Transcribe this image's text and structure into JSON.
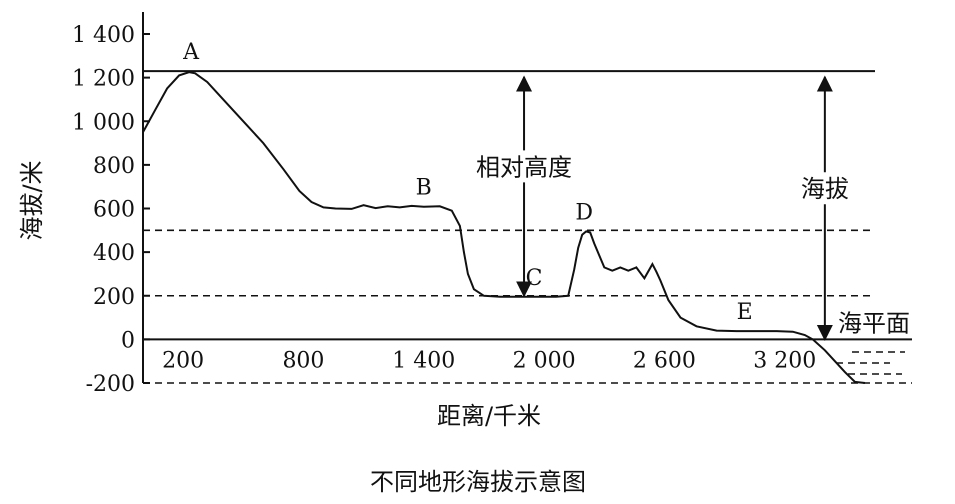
{
  "chart_data": {
    "type": "line",
    "title": "不同地形海拔示意图",
    "xlabel": "距离/千米",
    "ylabel": "海拔/米",
    "xlim": [
      0,
      3650
    ],
    "ylim": [
      -200,
      1400
    ],
    "x_ticks": [
      {
        "value": 200,
        "label": "200"
      },
      {
        "value": 800,
        "label": "800"
      },
      {
        "value": 1400,
        "label": "1 400"
      },
      {
        "value": 2000,
        "label": "2 000"
      },
      {
        "value": 2600,
        "label": "2 600"
      },
      {
        "value": 3200,
        "label": "3 200"
      }
    ],
    "y_ticks": [
      {
        "value": 1400,
        "label": "1 400"
      },
      {
        "value": 1200,
        "label": "1 200"
      },
      {
        "value": 1000,
        "label": "1 000"
      },
      {
        "value": 800,
        "label": "800"
      },
      {
        "value": 600,
        "label": "600"
      },
      {
        "value": 400,
        "label": "400"
      },
      {
        "value": 200,
        "label": "200"
      },
      {
        "value": 0,
        "label": "0"
      },
      {
        "value": -200,
        "label": "-200"
      }
    ],
    "series": [
      {
        "x": [
          0,
          60,
          120,
          180,
          230,
          260,
          320,
          400,
          500,
          600,
          700,
          780,
          840,
          900,
          960,
          1040,
          1100,
          1160,
          1220,
          1280,
          1340,
          1400,
          1480,
          1540,
          1580,
          1600,
          1620,
          1650,
          1700,
          1780,
          1860,
          1940,
          2000,
          2060,
          2120,
          2150,
          2170,
          2190,
          2210,
          2230,
          2250,
          2300,
          2340,
          2380,
          2420,
          2460,
          2500,
          2540,
          2560,
          2580,
          2620,
          2680,
          2760,
          2860,
          2960,
          3060,
          3160,
          3240,
          3300,
          3340,
          3400,
          3450,
          3500,
          3550,
          3600
        ],
        "y": [
          950,
          1050,
          1150,
          1210,
          1225,
          1220,
          1180,
          1100,
          1000,
          900,
          780,
          680,
          630,
          605,
          600,
          598,
          615,
          602,
          610,
          605,
          612,
          608,
          610,
          590,
          520,
          400,
          300,
          230,
          200,
          195,
          195,
          195,
          195,
          195,
          200,
          320,
          420,
          480,
          495,
          490,
          440,
          330,
          315,
          330,
          315,
          330,
          280,
          345,
          310,
          270,
          180,
          100,
          60,
          40,
          38,
          38,
          38,
          35,
          20,
          0,
          -50,
          -100,
          -150,
          -195,
          -200
        ]
      }
    ],
    "reference_lines": [
      {
        "y": 1230,
        "style": "solid"
      },
      {
        "y": 500,
        "style": "dashed"
      },
      {
        "y": 200,
        "style": "dashed"
      },
      {
        "y": 0,
        "style": "solid",
        "label": "海平面"
      },
      {
        "y": -200,
        "style": "dashed"
      }
    ],
    "point_labels": [
      {
        "name": "A",
        "x": 240,
        "y": 1230
      },
      {
        "name": "B",
        "x": 1400,
        "y": 610
      },
      {
        "name": "C",
        "x": 1950,
        "y": 195
      },
      {
        "name": "D",
        "x": 2200,
        "y": 495
      },
      {
        "name": "E",
        "x": 3000,
        "y": 38
      }
    ],
    "annotations": [
      {
        "text": "相对高度",
        "from_y": 1230,
        "to_y": 200,
        "x": 1900
      },
      {
        "text": "海拔",
        "from_y": 1230,
        "to_y": 0,
        "x": 3400
      }
    ]
  }
}
